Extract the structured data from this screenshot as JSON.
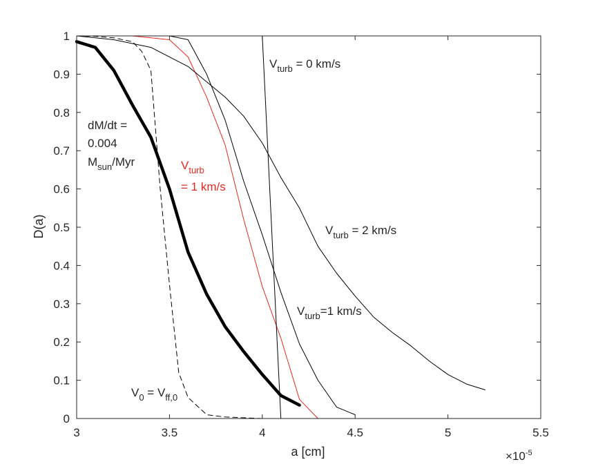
{
  "chart_data": {
    "type": "line",
    "xlabel": "a [cm]",
    "ylabel": "D(a)",
    "x_exponent_label": "×10",
    "x_exponent_power": "-5",
    "xlim": [
      3,
      5.5
    ],
    "ylim": [
      0,
      1
    ],
    "x_ticks": [
      3,
      3.5,
      4,
      4.5,
      5,
      5.5
    ],
    "x_tick_labels": [
      "3",
      "3.5",
      "4",
      "4.5",
      "5",
      "5.5"
    ],
    "y_ticks": [
      0,
      0.1,
      0.2,
      0.3,
      0.4,
      0.5,
      0.6,
      0.7,
      0.8,
      0.9,
      1
    ],
    "y_tick_labels": [
      "0",
      "0.1",
      "0.2",
      "0.3",
      "0.4",
      "0.5",
      "0.6",
      "0.7",
      "0.8",
      "0.9",
      "1"
    ],
    "grid": false,
    "series": [
      {
        "name": "dM/dt = 0.004 Msun/Myr (thick)",
        "color": "#000000",
        "style": "thick",
        "x": [
          3.0,
          3.1,
          3.2,
          3.3,
          3.4,
          3.5,
          3.6,
          3.7,
          3.8,
          3.9,
          4.0,
          4.1,
          4.2
        ],
        "y": [
          0.985,
          0.97,
          0.91,
          0.82,
          0.735,
          0.6,
          0.435,
          0.325,
          0.24,
          0.175,
          0.115,
          0.06,
          0.035
        ]
      },
      {
        "name": "V0 = Vff,0",
        "color": "#000000",
        "style": "dashed",
        "x": [
          3.0,
          3.1,
          3.2,
          3.3,
          3.35,
          3.4,
          3.45,
          3.5,
          3.55,
          3.6,
          3.7,
          3.8,
          4.0,
          4.1
        ],
        "y": [
          1.0,
          0.999,
          0.995,
          0.985,
          0.96,
          0.91,
          0.6,
          0.35,
          0.12,
          0.055,
          0.01,
          0.004,
          0.0,
          0.0
        ]
      },
      {
        "name": "Vturb = 1 km/s (red)",
        "color": "#e8281e",
        "style": "thin",
        "x": [
          3.0,
          3.3,
          3.5,
          3.6,
          3.7,
          3.8,
          3.9,
          4.0,
          4.1,
          4.2,
          4.3
        ],
        "y": [
          1.0,
          1.0,
          0.99,
          0.945,
          0.84,
          0.715,
          0.52,
          0.345,
          0.21,
          0.05,
          0.0
        ]
      },
      {
        "name": "Vturb = 0 km/s",
        "color": "#000000",
        "style": "thin",
        "x": [
          4.0,
          4.1
        ],
        "y": [
          1.0,
          0.0
        ]
      },
      {
        "name": "Vturb = 1 km/s",
        "color": "#000000",
        "style": "thin",
        "x": [
          3.0,
          3.5,
          3.6,
          3.7,
          3.8,
          3.9,
          4.0,
          4.1,
          4.2,
          4.3,
          4.4,
          4.5
        ],
        "y": [
          1.0,
          1.0,
          0.99,
          0.9,
          0.78,
          0.62,
          0.48,
          0.33,
          0.195,
          0.1,
          0.03,
          0.01
        ]
      },
      {
        "name": "Vturb = 2 km/s",
        "color": "#000000",
        "style": "thin",
        "x": [
          3.0,
          3.2,
          3.4,
          3.6,
          3.8,
          3.9,
          4.0,
          4.1,
          4.2,
          4.3,
          4.4,
          4.5,
          4.6,
          4.7,
          4.8,
          4.9,
          5.0,
          5.1,
          5.2
        ],
        "y": [
          1.0,
          0.99,
          0.97,
          0.92,
          0.84,
          0.79,
          0.72,
          0.63,
          0.55,
          0.45,
          0.38,
          0.32,
          0.265,
          0.225,
          0.19,
          0.15,
          0.115,
          0.09,
          0.075
        ]
      }
    ],
    "annotations": [
      {
        "id": "vturb0",
        "main": "V",
        "sub": "turb",
        "rest": " = 0 km/s",
        "color": "#000000"
      },
      {
        "id": "vturb2",
        "main": "V",
        "sub": "turb",
        "rest": " = 2 km/s",
        "color": "#000000"
      },
      {
        "id": "vturb1b",
        "main": "V",
        "sub": "turb",
        "rest": "=1 km/s",
        "color": "#000000"
      },
      {
        "id": "vturb1r_a",
        "main": "V",
        "sub": "turb",
        "rest": "",
        "color": "#e8281e"
      },
      {
        "id": "vturb1r_b",
        "text": "= 1 km/s",
        "color": "#e8281e"
      },
      {
        "id": "dmdt_1",
        "text": "dM/dt ="
      },
      {
        "id": "dmdt_2",
        "text": "0.004"
      },
      {
        "id": "dmdt_3",
        "main": "M",
        "sub": "sun",
        "rest": "/Myr"
      },
      {
        "id": "v0",
        "main": "V",
        "sub0": "0",
        "mid": " = V",
        "sub1": "ff,0"
      }
    ]
  }
}
